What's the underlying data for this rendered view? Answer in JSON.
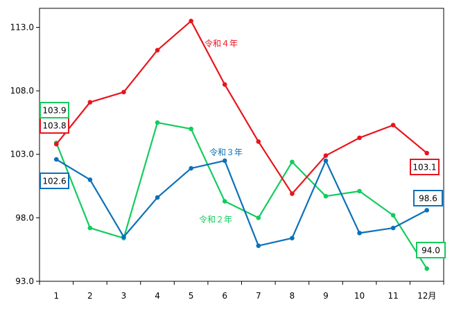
{
  "chart_data": {
    "type": "line",
    "categories": [
      "1",
      "2",
      "3",
      "4",
      "5",
      "6",
      "7",
      "8",
      "9",
      "10",
      "11",
      "12月"
    ],
    "ylim": [
      93.0,
      114.5
    ],
    "yticks": [
      "93.0",
      "98.0",
      "103.0",
      "108.0",
      "113.0"
    ],
    "ytick_values": [
      93,
      98,
      103,
      108,
      113
    ],
    "grid": false,
    "series": [
      {
        "name": "令和４年",
        "color": "#e8141c",
        "values": [
          103.8,
          107.1,
          107.9,
          111.2,
          113.5,
          108.5,
          104.0,
          99.9,
          102.9,
          104.3,
          105.3,
          103.1
        ],
        "label_first": "103.8",
        "label_last": "103.1"
      },
      {
        "name": "令和３年",
        "color": "#0b70b8",
        "values": [
          102.6,
          101.0,
          96.5,
          99.6,
          101.9,
          102.5,
          95.8,
          96.4,
          102.5,
          96.8,
          97.2,
          98.6
        ],
        "label_first": "102.6",
        "label_last": "98.6"
      },
      {
        "name": "令和２年",
        "color": "#12cc5c",
        "values": [
          103.9,
          97.2,
          96.4,
          105.5,
          105.0,
          99.3,
          98.0,
          102.4,
          99.7,
          100.1,
          98.2,
          94.0
        ],
        "label_first": "103.9",
        "label_last": "94.0"
      }
    ]
  }
}
